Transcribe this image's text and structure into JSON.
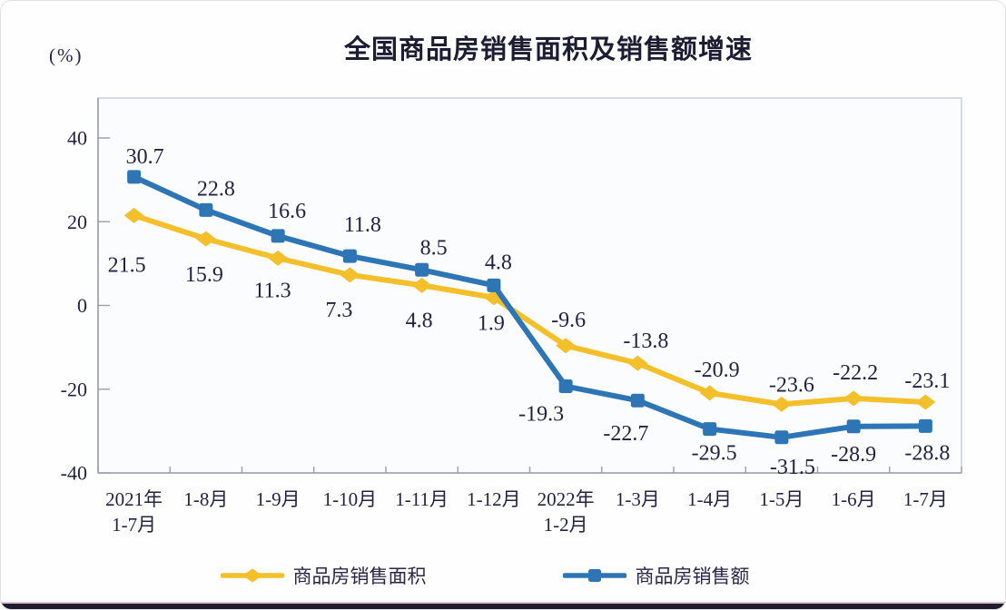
{
  "title": "全国商品房销售面积及销售额增速",
  "percent_label": "(%)",
  "chart_data": {
    "type": "line",
    "title": "全国商品房销售面积及销售额增速",
    "categories": [
      "2021年\n1-7月",
      "1-8月",
      "1-9月",
      "1-10月",
      "1-11月",
      "1-12月",
      "2022年\n1-2月",
      "1-3月",
      "1-4月",
      "1-5月",
      "1-6月",
      "1-7月"
    ],
    "series": [
      {
        "name": "商品房销售面积",
        "color": "#F3BF2A",
        "marker": "diamond",
        "values": [
          21.5,
          15.9,
          11.3,
          7.3,
          4.8,
          1.9,
          -9.6,
          -13.8,
          -20.9,
          -23.6,
          -22.2,
          -23.1
        ],
        "label_offsets": [
          [
            -8,
            55
          ],
          [
            -2,
            40
          ],
          [
            -6,
            36
          ],
          [
            -12,
            39
          ],
          [
            -3,
            39
          ],
          [
            -3,
            29
          ],
          [
            3,
            -28
          ],
          [
            9,
            -24
          ],
          [
            8,
            -25
          ],
          [
            11,
            -21
          ],
          [
            2,
            -28
          ],
          [
            2,
            -23
          ]
        ]
      },
      {
        "name": "商品房销售额",
        "color": "#2E75B6",
        "marker": "square",
        "values": [
          30.7,
          22.8,
          16.6,
          11.8,
          8.5,
          4.8,
          -19.3,
          -22.7,
          -29.5,
          -31.5,
          -28.9,
          -28.8
        ],
        "label_offsets": [
          [
            12,
            -22
          ],
          [
            11,
            -23
          ],
          [
            10,
            -27
          ],
          [
            14,
            -34
          ],
          [
            13,
            -24
          ],
          [
            5,
            -25
          ],
          [
            -27,
            31
          ],
          [
            -13,
            37
          ],
          [
            5,
            27
          ],
          [
            12,
            33
          ],
          [
            0,
            31
          ],
          [
            2,
            30
          ]
        ]
      }
    ],
    "ylim": [
      -40,
      40
    ],
    "yticks": [
      40,
      20,
      0,
      -20,
      -40
    ],
    "grid": false,
    "legend_position": "bottom",
    "xlabel": "",
    "ylabel": "(%)",
    "label_color": "#232244",
    "axis_color": "#999fa7",
    "plot_border_color": "#c8ccd2",
    "plot_bg_color": "#fbfcfe"
  }
}
